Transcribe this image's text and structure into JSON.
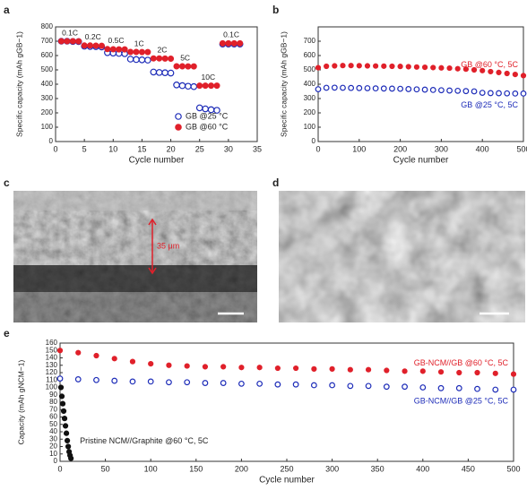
{
  "panels": [
    "a",
    "b",
    "c",
    "d",
    "e"
  ],
  "images": {
    "c_scale_label": "35 μm"
  },
  "chart_data": [
    {
      "type": "scatter",
      "xlabel": "Cycle number",
      "ylabel": "Specific capacity (mAh gGB−1)",
      "xlim": [
        0,
        35
      ],
      "xticks": [
        0,
        5,
        10,
        15,
        20,
        25,
        30,
        35
      ],
      "ylim": [
        0,
        800
      ],
      "yticks": [
        0,
        100,
        200,
        300,
        400,
        500,
        600,
        700,
        800
      ],
      "legend": "lower right",
      "annotations": [
        "0.1C",
        "0.2C",
        "0.5C",
        "1C",
        "2C",
        "5C",
        "10C",
        "0.1C"
      ],
      "series": [
        {
          "name": "GB @25 °C",
          "color": "#1c2bb8",
          "marker": "open",
          "x": [
            1,
            2,
            3,
            4,
            5,
            6,
            7,
            8,
            9,
            10,
            11,
            12,
            13,
            14,
            15,
            16,
            17,
            18,
            19,
            20,
            21,
            22,
            23,
            24,
            25,
            26,
            27,
            28,
            29,
            30,
            31,
            32
          ],
          "values": [
            700,
            700,
            698,
            697,
            665,
            663,
            662,
            660,
            620,
            617,
            615,
            613,
            575,
            572,
            570,
            568,
            485,
            482,
            480,
            478,
            395,
            390,
            386,
            383,
            235,
            228,
            222,
            218,
            680,
            680,
            680,
            680
          ]
        },
        {
          "name": "GB @60 °C",
          "color": "#e0202a",
          "marker": "filled",
          "x": [
            1,
            2,
            3,
            4,
            5,
            6,
            7,
            8,
            9,
            10,
            11,
            12,
            13,
            14,
            15,
            16,
            17,
            18,
            19,
            20,
            21,
            22,
            23,
            24,
            25,
            26,
            27,
            28,
            29,
            30,
            31,
            32
          ],
          "values": [
            700,
            700,
            700,
            699,
            670,
            670,
            669,
            668,
            645,
            644,
            643,
            643,
            625,
            625,
            624,
            624,
            580,
            580,
            579,
            578,
            525,
            525,
            524,
            524,
            390,
            390,
            390,
            390,
            685,
            685,
            685,
            685
          ]
        }
      ]
    },
    {
      "type": "scatter",
      "xlabel": "Cycle number",
      "ylabel": "Specific capacity (mAh gGB−1)",
      "xlim": [
        0,
        500
      ],
      "xticks": [
        0,
        100,
        200,
        300,
        400,
        500
      ],
      "ylim": [
        0,
        800
      ],
      "yticks": [
        0,
        100,
        200,
        300,
        400,
        500,
        600,
        700
      ],
      "legend": "inline",
      "series": [
        {
          "name": "GB @60 °C, 5C",
          "color": "#e0202a",
          "marker": "filled",
          "x": [
            0,
            20,
            40,
            60,
            80,
            100,
            120,
            140,
            160,
            180,
            200,
            220,
            240,
            260,
            280,
            300,
            320,
            340,
            360,
            380,
            400,
            420,
            440,
            460,
            480,
            500
          ],
          "values": [
            515,
            525,
            528,
            530,
            530,
            529,
            528,
            527,
            526,
            525,
            524,
            522,
            520,
            518,
            516,
            514,
            512,
            508,
            505,
            500,
            495,
            488,
            482,
            475,
            468,
            460
          ]
        },
        {
          "name": "GB @25 °C, 5C",
          "color": "#1c2bb8",
          "marker": "open",
          "x": [
            0,
            20,
            40,
            60,
            80,
            100,
            120,
            140,
            160,
            180,
            200,
            220,
            240,
            260,
            280,
            300,
            320,
            340,
            360,
            380,
            400,
            420,
            440,
            460,
            480,
            500
          ],
          "values": [
            365,
            375,
            376,
            375,
            374,
            373,
            372,
            371,
            370,
            369,
            368,
            366,
            364,
            362,
            360,
            358,
            356,
            354,
            352,
            350,
            340,
            338,
            337,
            336,
            335,
            335
          ]
        }
      ]
    },
    {
      "type": "scatter",
      "xlabel": "Cycle number",
      "ylabel": "Capacity (mAh gNCM−1)",
      "xlim": [
        0,
        500
      ],
      "xticks": [
        0,
        50,
        100,
        150,
        200,
        250,
        300,
        350,
        400,
        450,
        500
      ],
      "ylim": [
        0,
        160
      ],
      "yticks": [
        0,
        10,
        20,
        30,
        40,
        50,
        60,
        70,
        80,
        90,
        100,
        110,
        120,
        130,
        140,
        150,
        160
      ],
      "legend": "inline",
      "series": [
        {
          "name": "GB-NCM//GB @60 °C, 5C",
          "color": "#e0202a",
          "marker": "filled",
          "x": [
            0,
            20,
            40,
            60,
            80,
            100,
            120,
            140,
            160,
            180,
            200,
            220,
            240,
            260,
            280,
            300,
            320,
            340,
            360,
            380,
            400,
            420,
            440,
            460,
            480,
            500
          ],
          "values": [
            150,
            147,
            143,
            139,
            135,
            132,
            130,
            129,
            128,
            128,
            127,
            127,
            126,
            126,
            125,
            125,
            124,
            124,
            123,
            122,
            122,
            121,
            120,
            120,
            119,
            118
          ]
        },
        {
          "name": "GB-NCM//GB @25 °C, 5C",
          "color": "#1c2bb8",
          "marker": "open",
          "x": [
            0,
            20,
            40,
            60,
            80,
            100,
            120,
            140,
            160,
            180,
            200,
            220,
            240,
            260,
            280,
            300,
            320,
            340,
            360,
            380,
            400,
            420,
            440,
            460,
            480,
            500
          ],
          "values": [
            112,
            111,
            110,
            109,
            108,
            108,
            107,
            107,
            106,
            106,
            105,
            105,
            104,
            104,
            103,
            103,
            102,
            102,
            101,
            101,
            100,
            99,
            99,
            98,
            97,
            97
          ]
        },
        {
          "name": "Pristine NCM//Graphite @60 °C, 5C",
          "color": "#111111",
          "marker": "filled",
          "x": [
            1,
            2,
            3,
            4,
            5,
            6,
            7,
            8,
            9,
            10,
            11,
            12
          ],
          "values": [
            100,
            88,
            78,
            68,
            58,
            48,
            38,
            28,
            20,
            13,
            8,
            4
          ]
        }
      ]
    }
  ]
}
